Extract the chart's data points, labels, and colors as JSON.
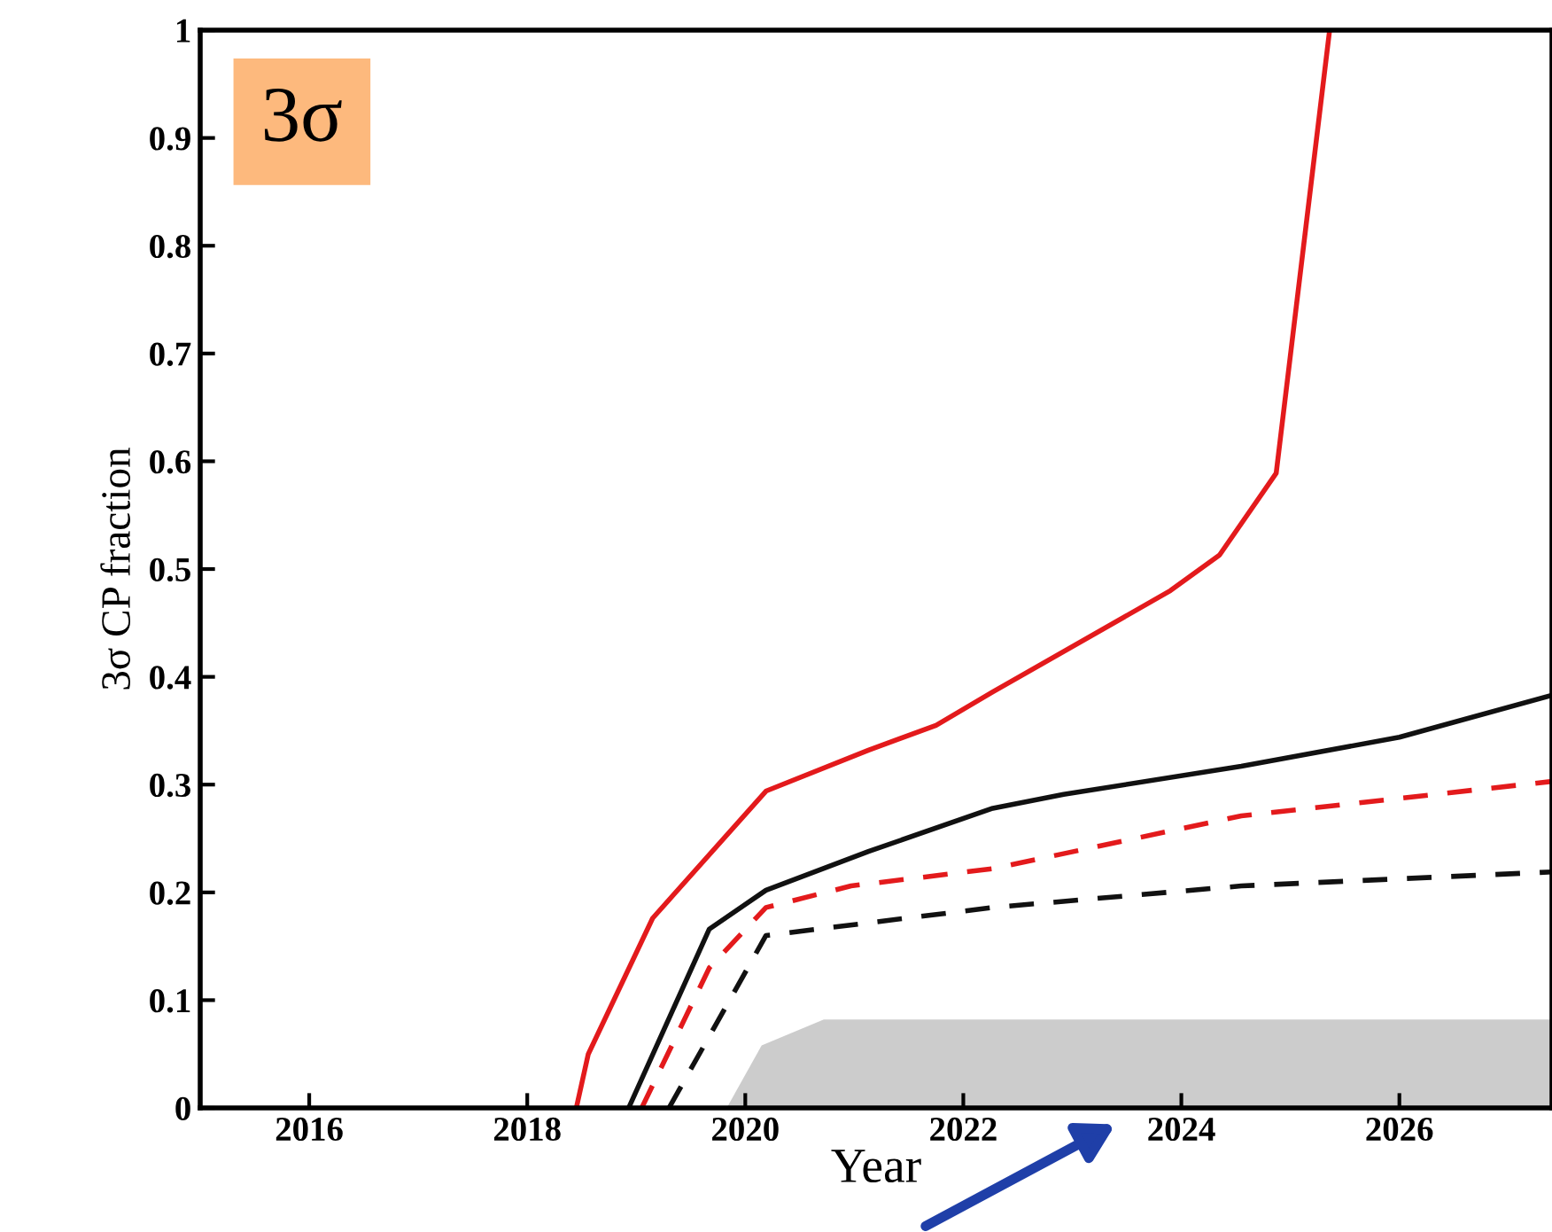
{
  "chart_data": {
    "type": "line",
    "ylabel": "3σ CP fraction",
    "xlabel": "Year",
    "annotations": [
      "3σ"
    ],
    "xlim": [
      2015,
      2027.4
    ],
    "ylim": [
      0,
      1
    ],
    "xticks": [
      2016,
      2018,
      2020,
      2022,
      2024,
      2026
    ],
    "yticks": [
      0,
      0.1,
      0.2,
      0.3,
      0.4,
      0.5,
      0.6,
      0.7,
      0.8,
      0.9,
      1
    ],
    "grid": false,
    "legend": false,
    "series": [
      {
        "type": "area",
        "color": "#cccccc",
        "x": [
          2019.83,
          2020.15,
          2020.72,
          2027.4
        ],
        "values": [
          0,
          0.058,
          0.082,
          0.082
        ]
      },
      {
        "color": "#e31a1c",
        "line_style": "solid",
        "x": [
          2018.45,
          2018.56,
          2019.15,
          2020.19,
          2021.13,
          2021.75,
          2022.27,
          2023.9,
          2024.35,
          2024.87,
          2025.36
        ],
        "values": [
          0,
          0.05,
          0.176,
          0.294,
          0.332,
          0.355,
          0.386,
          0.48,
          0.513,
          0.589,
          1.0
        ]
      },
      {
        "color": "#111111",
        "line_style": "solid",
        "x": [
          2018.93,
          2019.67,
          2020.19,
          2021.13,
          2022.27,
          2022.92,
          2024.55,
          2026.0,
          2027.4
        ],
        "values": [
          0,
          0.166,
          0.202,
          0.238,
          0.278,
          0.291,
          0.317,
          0.344,
          0.383
        ]
      },
      {
        "color": "#e31a1c",
        "line_style": "dashed",
        "x": [
          2019.05,
          2019.67,
          2020.19,
          2020.97,
          2022.27,
          2024.55,
          2027.4
        ],
        "values": [
          0,
          0.13,
          0.186,
          0.206,
          0.222,
          0.271,
          0.303
        ]
      },
      {
        "color": "#111111",
        "line_style": "dashed",
        "x": [
          2019.3,
          2020.19,
          2022.27,
          2024.55,
          2027.4
        ],
        "values": [
          0,
          0.16,
          0.186,
          0.206,
          0.219
        ]
      }
    ]
  }
}
